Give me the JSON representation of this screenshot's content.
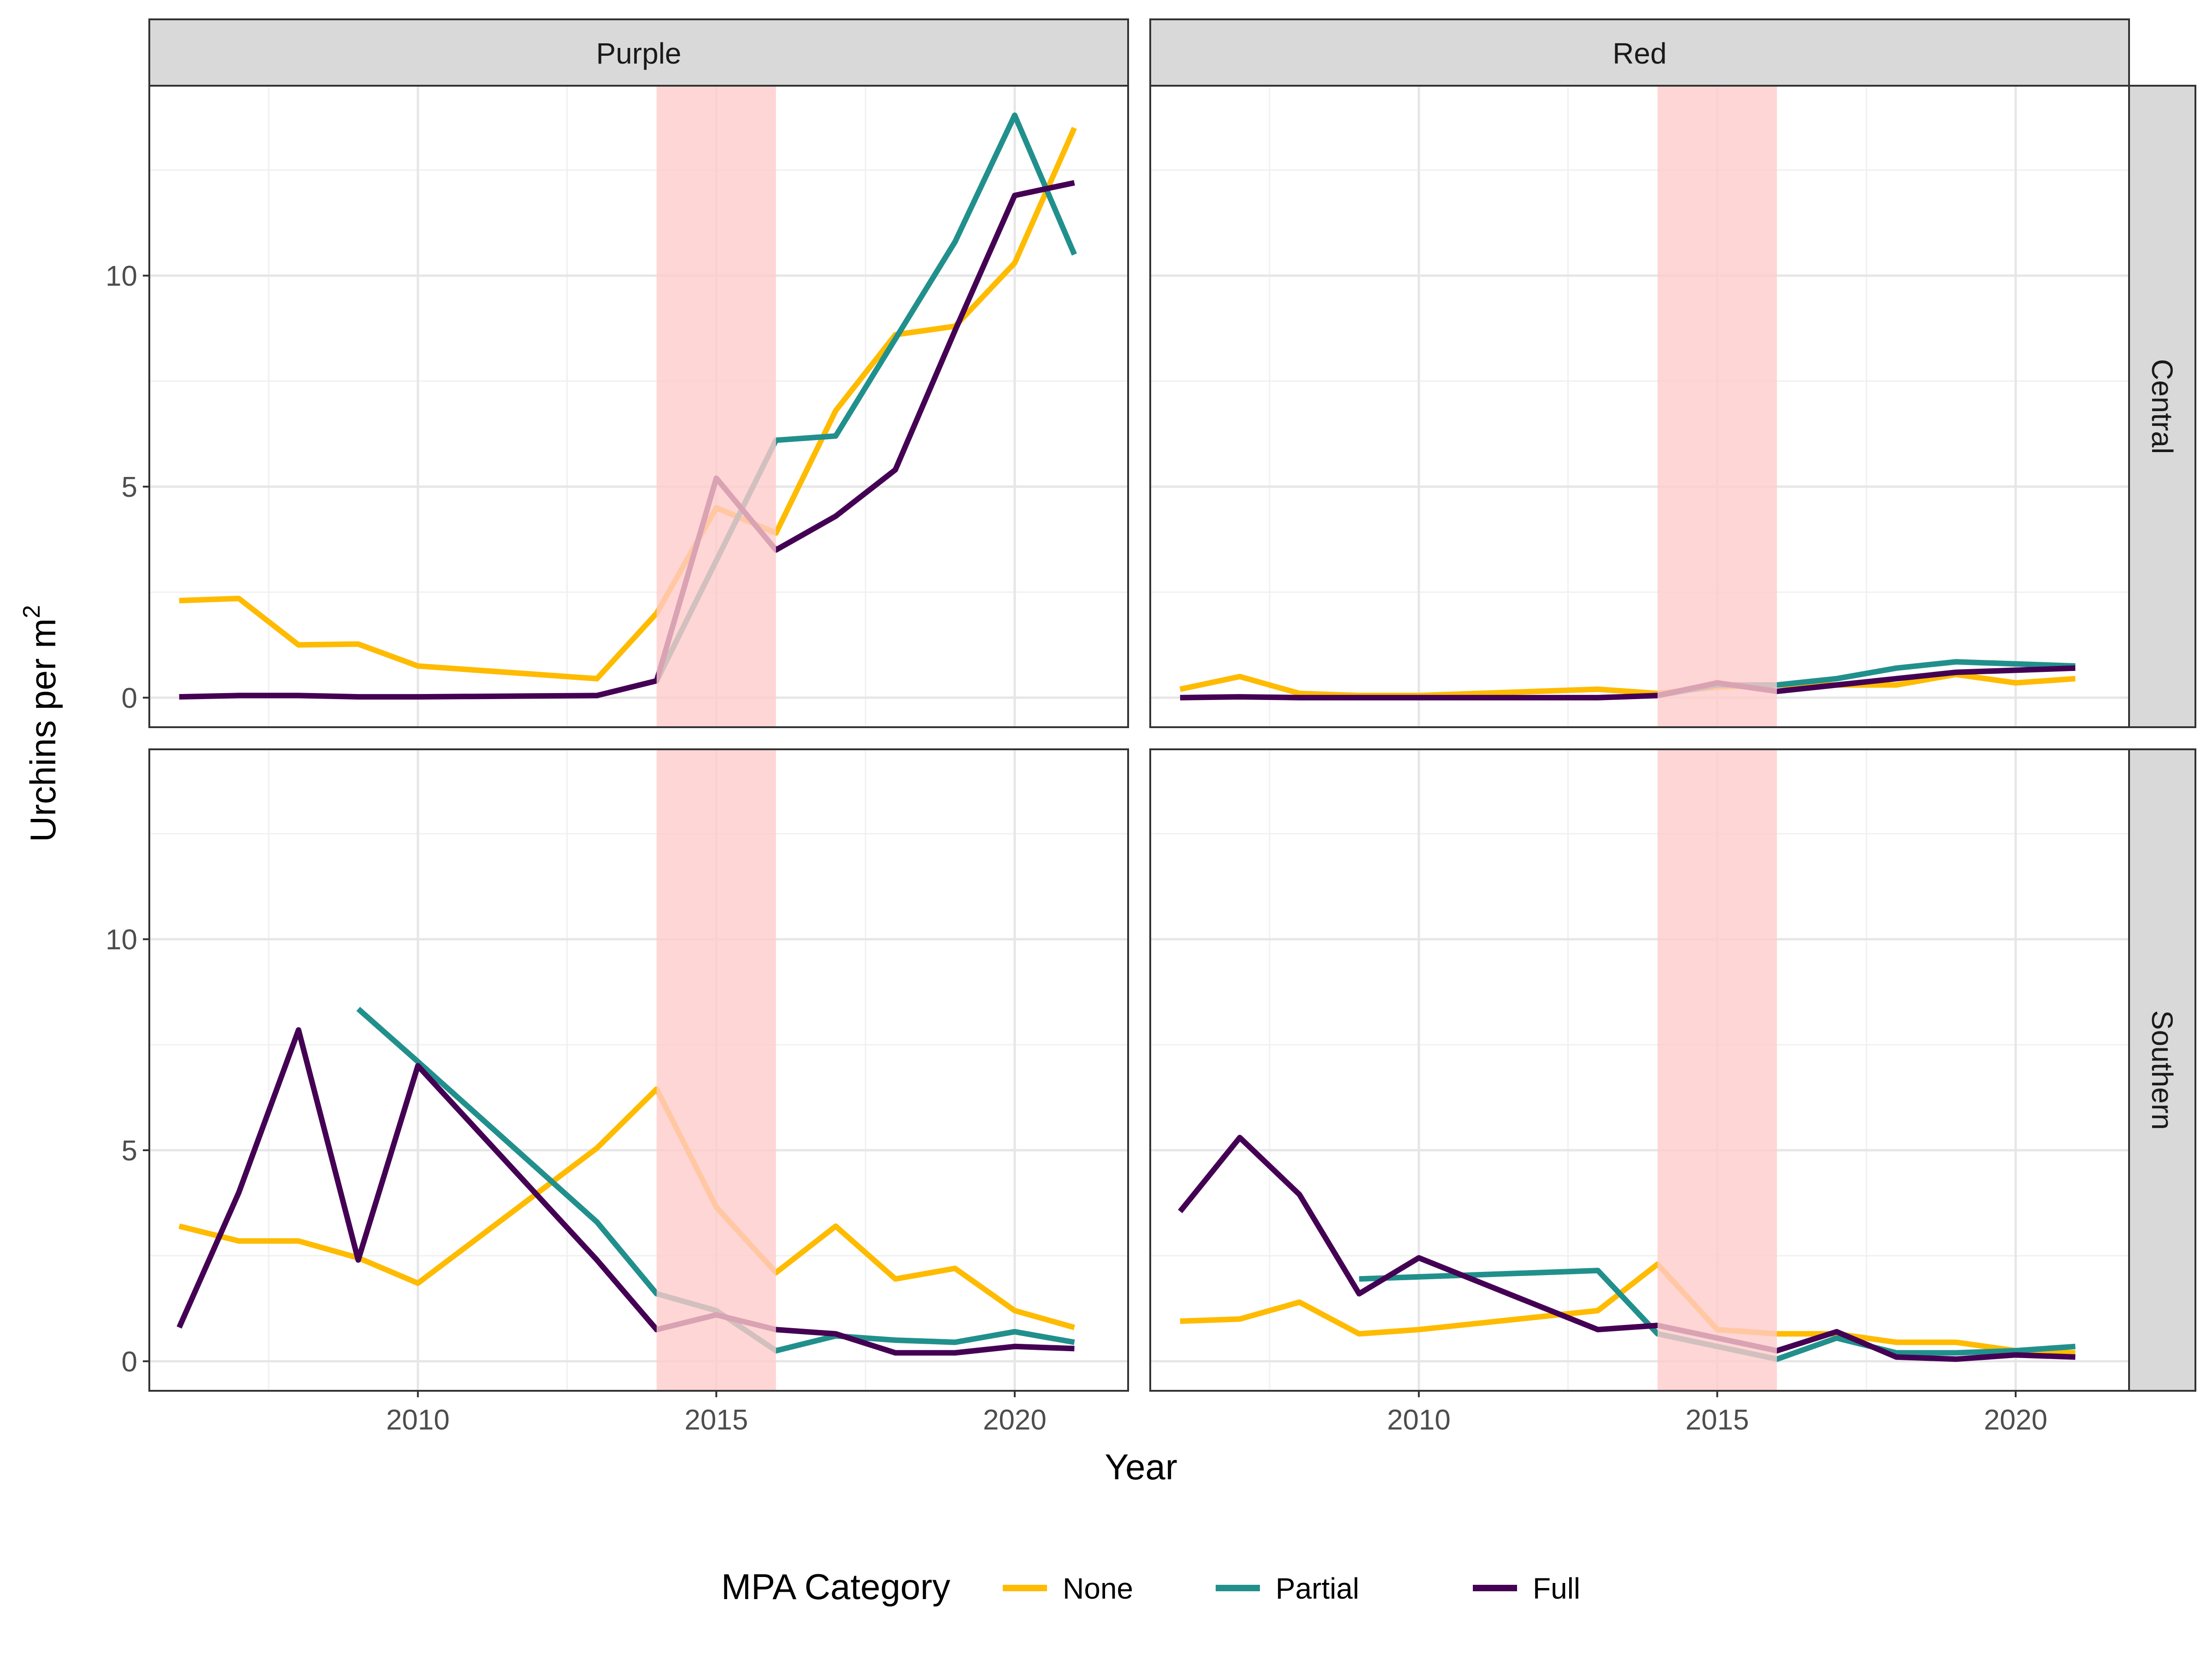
{
  "chart_data": {
    "type": "line",
    "facets": {
      "columns": [
        "Purple",
        "Red"
      ],
      "rows": [
        "Central",
        "Southern"
      ]
    },
    "xlabel": "Year",
    "ylabel_main": "Urchins per m",
    "ylabel_sup": "2",
    "xlim": [
      2005.5,
      2021.9
    ],
    "ylim": [
      -0.7,
      14.5
    ],
    "x_ticks": [
      2010,
      2015,
      2020
    ],
    "y_ticks": [
      0,
      5,
      10
    ],
    "grid": true,
    "shaded_interval": {
      "start": 2014,
      "end": 2016,
      "color": "#ffcccc"
    },
    "legend": {
      "title": "MPA Category",
      "position": "bottom",
      "entries": [
        "None",
        "Partial",
        "Full"
      ]
    },
    "series_colors": {
      "None": "#ffbb00",
      "Partial": "#21908c",
      "Full": "#440154"
    },
    "panels": [
      {
        "col": "Purple",
        "row": "Central",
        "series": [
          {
            "name": "None",
            "x": [
              2006,
              2007,
              2008,
              2009,
              2010,
              2013,
              2014,
              2015,
              2016,
              2017,
              2018,
              2019,
              2020,
              2021
            ],
            "y": [
              2.3,
              2.35,
              1.25,
              1.27,
              0.75,
              0.45,
              2.0,
              4.5,
              3.9,
              6.8,
              8.6,
              8.8,
              10.3,
              13.5
            ]
          },
          {
            "name": "Partial",
            "x": [
              2014,
              2016,
              2017,
              2019,
              2020,
              2021
            ],
            "y": [
              0.4,
              6.1,
              6.2,
              10.8,
              13.8,
              10.5
            ]
          },
          {
            "name": "Full",
            "x": [
              2006,
              2007,
              2008,
              2009,
              2010,
              2013,
              2014,
              2015,
              2016,
              2017,
              2018,
              2019,
              2020,
              2021
            ],
            "y": [
              0.02,
              0.05,
              0.05,
              0.02,
              0.02,
              0.05,
              0.4,
              5.2,
              3.5,
              4.3,
              5.4,
              8.7,
              11.9,
              12.2
            ]
          }
        ]
      },
      {
        "col": "Red",
        "row": "Central",
        "series": [
          {
            "name": "None",
            "x": [
              2006,
              2007,
              2008,
              2009,
              2010,
              2013,
              2014,
              2015,
              2016,
              2017,
              2018,
              2019,
              2020,
              2021
            ],
            "y": [
              0.2,
              0.5,
              0.1,
              0.05,
              0.05,
              0.2,
              0.1,
              0.25,
              0.3,
              0.3,
              0.3,
              0.55,
              0.35,
              0.45
            ]
          },
          {
            "name": "Partial",
            "x": [
              2014,
              2015,
              2016,
              2017,
              2018,
              2019,
              2020,
              2021
            ],
            "y": [
              0.05,
              0.3,
              0.3,
              0.45,
              0.7,
              0.85,
              0.8,
              0.75
            ]
          },
          {
            "name": "Full",
            "x": [
              2006,
              2007,
              2008,
              2009,
              2010,
              2013,
              2014,
              2015,
              2016,
              2017,
              2018,
              2019,
              2020,
              2021
            ],
            "y": [
              0.0,
              0.02,
              0.0,
              0.0,
              0.0,
              0.0,
              0.05,
              0.35,
              0.15,
              0.3,
              0.45,
              0.6,
              0.65,
              0.7
            ]
          }
        ]
      },
      {
        "col": "Purple",
        "row": "Southern",
        "series": [
          {
            "name": "None",
            "x": [
              2006,
              2007,
              2008,
              2009,
              2010,
              2013,
              2014,
              2015,
              2016,
              2017,
              2018,
              2019,
              2020,
              2021
            ],
            "y": [
              3.2,
              2.85,
              2.85,
              2.45,
              1.85,
              5.05,
              6.45,
              3.65,
              2.1,
              3.2,
              1.95,
              2.2,
              1.2,
              0.8
            ]
          },
          {
            "name": "Partial",
            "x": [
              2009,
              2010,
              2013,
              2014,
              2015,
              2016,
              2017,
              2018,
              2019,
              2020,
              2021
            ],
            "y": [
              8.35,
              7.1,
              3.3,
              1.6,
              1.2,
              0.25,
              0.6,
              0.5,
              0.45,
              0.7,
              0.45
            ]
          },
          {
            "name": "Full",
            "x": [
              2006,
              2007,
              2008,
              2009,
              2010,
              2013,
              2014,
              2015,
              2016,
              2017,
              2018,
              2019,
              2020,
              2021
            ],
            "y": [
              0.8,
              4.0,
              7.85,
              2.4,
              7.0,
              2.4,
              0.75,
              1.1,
              0.75,
              0.65,
              0.2,
              0.2,
              0.35,
              0.3
            ]
          }
        ]
      },
      {
        "col": "Red",
        "row": "Southern",
        "series": [
          {
            "name": "None",
            "x": [
              2006,
              2007,
              2008,
              2009,
              2010,
              2013,
              2014,
              2015,
              2016,
              2017,
              2018,
              2019,
              2020,
              2021
            ],
            "y": [
              0.95,
              1.0,
              1.4,
              0.65,
              0.75,
              1.2,
              2.3,
              0.75,
              0.65,
              0.65,
              0.45,
              0.45,
              0.25,
              0.2
            ]
          },
          {
            "name": "Partial",
            "x": [
              2009,
              2013,
              2014,
              2016,
              2017,
              2018,
              2019,
              2020,
              2021
            ],
            "y": [
              1.95,
              2.15,
              0.65,
              0.05,
              0.55,
              0.2,
              0.2,
              0.25,
              0.35
            ]
          },
          {
            "name": "Full",
            "x": [
              2006,
              2007,
              2008,
              2009,
              2010,
              2013,
              2014,
              2015,
              2016,
              2017,
              2018,
              2019,
              2020,
              2021
            ],
            "y": [
              3.55,
              5.3,
              3.95,
              1.6,
              2.45,
              0.75,
              0.85,
              0.55,
              0.25,
              0.7,
              0.1,
              0.05,
              0.15,
              0.1
            ]
          }
        ]
      }
    ]
  }
}
